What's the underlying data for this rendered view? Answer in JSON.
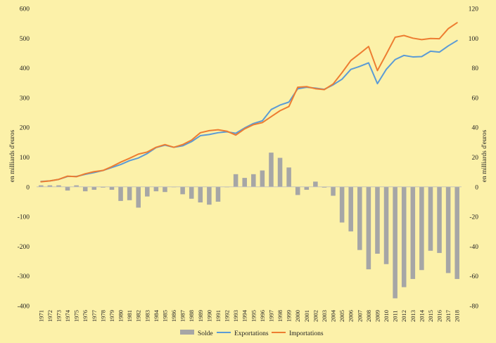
{
  "colors": {
    "background": "#fcf1a9",
    "solde": "#a6a6a6",
    "exportations": "#5b9bd5",
    "importations": "#ed7d31",
    "zero_line": "#bfbfbf"
  },
  "chart_data": {
    "type": "bar+line",
    "title": "",
    "ylabel_left": "en milliards d'euros",
    "ylabel_right": "en milliards d'euros",
    "ylim_left": [
      -400,
      600
    ],
    "ylim_right": [
      -80,
      120
    ],
    "yticks_left": [
      600,
      500,
      400,
      300,
      200,
      100,
      0,
      -100,
      -200,
      -300,
      -400
    ],
    "yticks_right": [
      120,
      100,
      80,
      60,
      40,
      20,
      0,
      -20,
      -40,
      -60,
      -80
    ],
    "grid": false,
    "legend_position": "bottom",
    "categories": [
      "1971",
      "1972",
      "1973",
      "1974",
      "1975",
      "1976",
      "1977",
      "1978",
      "1979",
      "1980",
      "1981",
      "1982",
      "1983",
      "1984",
      "1985",
      "1986",
      "1987",
      "1988",
      "1989",
      "1990",
      "1991",
      "1992",
      "1993",
      "1994",
      "1995",
      "1996",
      "1997",
      "1998",
      "1999",
      "2000",
      "2001",
      "2002",
      "2003",
      "2004",
      "2005",
      "2006",
      "2007",
      "2008",
      "2009",
      "2010",
      "2011",
      "2012",
      "2013",
      "2014",
      "2015",
      "2016",
      "2017",
      "2018"
    ],
    "series": [
      {
        "name": "Solde",
        "kind": "bar",
        "axis": "right",
        "values": [
          1,
          1,
          1,
          -2.5,
          1,
          -3,
          -2,
          -0.5,
          -2,
          -9.5,
          -9,
          -14,
          -6.5,
          -3,
          -3.5,
          0,
          -5,
          -8,
          -10.5,
          -12,
          -10,
          0,
          8.5,
          6,
          8.5,
          11,
          23,
          19.5,
          13,
          -5.5,
          -2,
          3.5,
          -0.5,
          -6,
          -24,
          -30,
          -42.5,
          -55.5,
          -45,
          -52,
          -75,
          -67.5,
          -62,
          -56,
          -43,
          -44.5,
          -58,
          -62
        ]
      },
      {
        "name": "Exportations",
        "kind": "line",
        "axis": "left",
        "values": [
          18,
          20,
          25,
          35,
          35,
          42,
          48,
          55,
          65,
          75,
          88,
          97,
          112,
          132,
          140,
          133,
          138,
          152,
          172,
          176,
          182,
          185,
          180,
          198,
          213,
          222,
          260,
          275,
          285,
          330,
          335,
          332,
          328,
          343,
          362,
          395,
          405,
          417,
          347,
          395,
          428,
          442,
          437,
          438,
          456,
          453,
          474,
          492
        ]
      },
      {
        "name": "Importations",
        "kind": "line",
        "axis": "left",
        "values": [
          17,
          20,
          25,
          36,
          34,
          44,
          51,
          55,
          68,
          83,
          96,
          110,
          117,
          133,
          142,
          133,
          142,
          157,
          182,
          189,
          192,
          187,
          174,
          195,
          209,
          216,
          236,
          256,
          270,
          335,
          337,
          330,
          327,
          346,
          384,
          425,
          448,
          472,
          391,
          446,
          503,
          509,
          500,
          495,
          499,
          498,
          532,
          552
        ]
      }
    ]
  }
}
